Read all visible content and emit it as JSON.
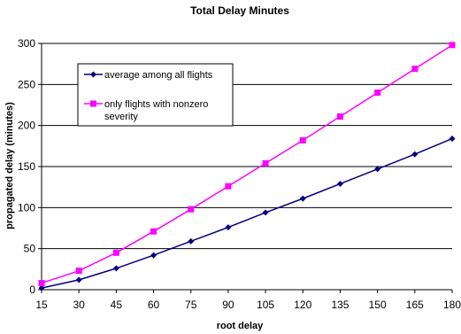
{
  "chart_data": {
    "type": "line",
    "title": "Total Delay Minutes",
    "xlabel": "root delay",
    "ylabel": "propagated delay (minutes)",
    "x": [
      15,
      30,
      45,
      60,
      75,
      90,
      105,
      120,
      135,
      150,
      165,
      180
    ],
    "ylim": [
      0,
      300
    ],
    "yticks": [
      0,
      50,
      100,
      150,
      200,
      250,
      300
    ],
    "grid": true,
    "legend_position": "top-left",
    "series": [
      {
        "name": "average among all flights",
        "color": "#000080",
        "marker": "diamond",
        "values": [
          2,
          12,
          26,
          42,
          59,
          76,
          94,
          111,
          129,
          147,
          165,
          184
        ]
      },
      {
        "name": "only flights with nonzero severity",
        "color": "#ff00ff",
        "marker": "square",
        "values": [
          8,
          23,
          45,
          71,
          98,
          126,
          154,
          182,
          211,
          240,
          269,
          298
        ]
      }
    ]
  }
}
